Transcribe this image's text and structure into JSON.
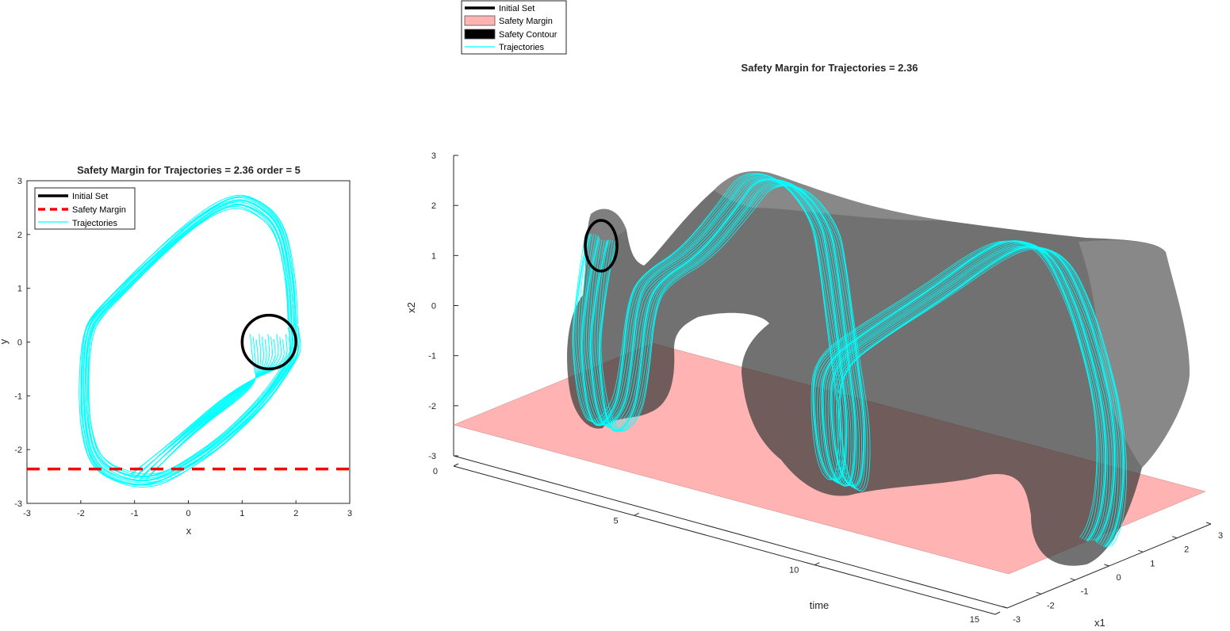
{
  "chart_data": [
    {
      "type": "line",
      "title": "Safety Margin for Trajectories = 2.36 order = 5",
      "xlabel": "x",
      "ylabel": "y",
      "xlim": [
        -3,
        3
      ],
      "ylim": [
        -3,
        3
      ],
      "xticks": [
        -3,
        -2,
        -1,
        0,
        1,
        2,
        3
      ],
      "yticks": [
        -3,
        -2,
        -1,
        0,
        1,
        2,
        3
      ],
      "grid": false,
      "legend_position": "top-left",
      "legend": [
        "Initial Set",
        "Safety Margin",
        "Trajectories"
      ],
      "initial_set": {
        "center": [
          1.5,
          0.0
        ],
        "radius": 0.5,
        "color": "#000000"
      },
      "safety_margin": {
        "y": -2.36,
        "color": "#ff0000",
        "style": "dashed"
      },
      "trajectory_color": "#00ffff",
      "limit_cycle": {
        "x": [
          1.95,
          1.9,
          1.7,
          1.2,
          0.8,
          0.2,
          -0.6,
          -1.3,
          -1.75,
          -1.9,
          -1.95,
          -1.9,
          -1.7,
          -1.2,
          -0.8,
          -0.4,
          0.2,
          0.8,
          1.5,
          1.95,
          2.0,
          1.95
        ],
        "y": [
          0.3,
          1.2,
          2.2,
          2.6,
          2.65,
          2.3,
          1.6,
          0.9,
          0.45,
          0.1,
          -0.8,
          -1.7,
          -2.3,
          -2.55,
          -2.6,
          -2.5,
          -2.15,
          -1.7,
          -1.0,
          -0.3,
          -0.1,
          0.3
        ]
      }
    },
    {
      "type": "surface3d",
      "title": "Safety Margin for Trajectories = 2.36",
      "xlabel": "time",
      "ylabel": "x1",
      "zlabel": "x2",
      "time_ticks": [
        0,
        5,
        10,
        15
      ],
      "x1_ticks": [
        -3,
        -2,
        -1,
        0,
        1,
        2,
        3
      ],
      "x2_ticks": [
        -3,
        -2,
        -1,
        0,
        1,
        2,
        3
      ],
      "legend_position": "top-left",
      "legend": [
        "Initial Set",
        "Safety Margin",
        "Trajectories"
      ],
      "legend_contour": "Safety Contour",
      "safety_margin_plane": -2.36,
      "colors": {
        "plane": "#ffb3b3",
        "contour": "#1a1a1a",
        "trajectories": "#00ffff",
        "initial": "#000000"
      }
    }
  ]
}
